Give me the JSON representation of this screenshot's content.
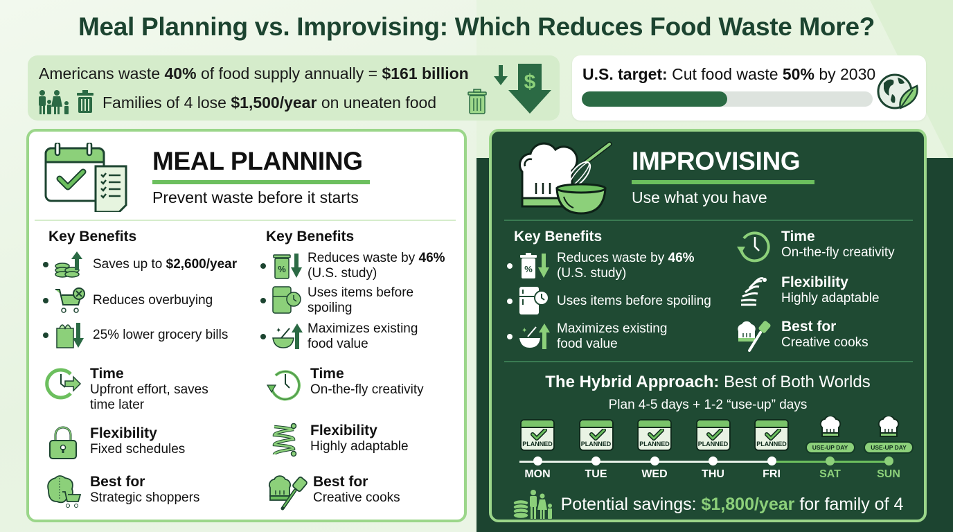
{
  "title": "Meal Planning vs. Improvising: Which Reduces Food Waste More?",
  "stats": {
    "line1_prefix": "Americans waste ",
    "line1_pct": "40%",
    "line1_mid": " of food supply annually = ",
    "line1_amount": "$161 billion",
    "line2_prefix": "Families of 4 lose ",
    "line2_amount": "$1,500/year",
    "line2_suffix": " on uneaten food",
    "icons": [
      "family-icon",
      "trash-can-icon",
      "down-arrow-icon",
      "dollar-down-arrow-icon"
    ]
  },
  "target": {
    "label": "U.S. target:",
    "text_a": " Cut food waste ",
    "pct": "50%",
    "text_b": " by 2030",
    "progress_percent": 50,
    "icon": "globe-leaf-icon"
  },
  "colors": {
    "dark_green": "#1c4430",
    "card_dark": "#1f4a33",
    "accent_green": "#6cbf5e",
    "light_green": "#8cd07a",
    "border_green": "#9bd68a",
    "progress_fill": "#2b6a44",
    "progress_track": "#dde3de"
  },
  "meal_planning": {
    "title": "MEAL PLANNING",
    "subtitle": "Prevent waste before it starts",
    "key_benefits_left": {
      "heading": "Key Benefits",
      "items": [
        {
          "icon": "coins-up-arrow-icon",
          "text": "Saves up to ",
          "bold": "$2,600/year"
        },
        {
          "icon": "cart-x-icon",
          "text": "Reduces overbuying",
          "bold": ""
        },
        {
          "icon": "grocery-bag-down-icon",
          "text": "25% lower grocery bills",
          "bold": ""
        }
      ]
    },
    "key_benefits_right": {
      "heading": "Key Benefits",
      "items": [
        {
          "icon": "bin-percent-down-icon",
          "line1": "Reduces waste by ",
          "bold": "46%",
          "line2": "(U.S. study)"
        },
        {
          "icon": "fridge-clock-icon",
          "line1": "Uses items before",
          "bold": "",
          "line2": "spoiling"
        },
        {
          "icon": "bowl-up-arrow-icon",
          "line1": "Maximizes existing",
          "bold": "",
          "line2": "food value"
        }
      ]
    },
    "attributes_left": [
      {
        "icon": "clock-forward-icon",
        "title": "Time",
        "desc": "Upfront effort, saves time later"
      },
      {
        "icon": "padlock-icon",
        "title": "Flexibility",
        "desc": "Fixed schedules"
      },
      {
        "icon": "brain-cart-icon",
        "title": "Best for",
        "desc": "Strategic shoppers"
      }
    ],
    "attributes_right": [
      {
        "icon": "clock-rewind-icon",
        "title": "Time",
        "desc": "On-the-fly creativity"
      },
      {
        "icon": "spring-icon",
        "title": "Flexibility",
        "desc": "Highly adaptable"
      },
      {
        "icon": "chef-hat-spatula-icon",
        "title": "Best for",
        "desc": "Creative cooks"
      }
    ]
  },
  "improvising": {
    "title": "IMPROVISING",
    "subtitle": "Use what you have",
    "key_benefits": {
      "heading": "Key Benefits",
      "items": [
        {
          "icon": "bin-percent-down-icon",
          "line1": "Reduces waste by ",
          "bold": "46%",
          "line2": "(U.S. study)"
        },
        {
          "icon": "fridge-clock-icon",
          "line1": "Uses items before spoiling",
          "bold": "",
          "line2": ""
        },
        {
          "icon": "bowl-up-arrow-icon",
          "line1": "Maximizes existing",
          "bold": "",
          "line2": "food value"
        }
      ]
    },
    "attributes": [
      {
        "icon": "clock-rewind-icon",
        "title": "Time",
        "desc": "On-the-fly creativity"
      },
      {
        "icon": "spring-icon",
        "title": "Flexibility",
        "desc": "Highly adaptable"
      },
      {
        "icon": "chef-hat-spatula-icon",
        "title": "Best for",
        "desc": "Creative cooks"
      }
    ],
    "hybrid": {
      "title_bold": "The Hybrid Approach:",
      "title_rest": " Best of Both Worlds",
      "subtitle": "Plan 4-5 days + 1-2 “use-up” days",
      "days": [
        {
          "day": "MON",
          "type": "planned",
          "badge": "PLANNED"
        },
        {
          "day": "TUE",
          "type": "planned",
          "badge": "PLANNED"
        },
        {
          "day": "WED",
          "type": "planned",
          "badge": "PLANNED"
        },
        {
          "day": "THU",
          "type": "planned",
          "badge": "PLANNED"
        },
        {
          "day": "FRI",
          "type": "planned",
          "badge": "PLANNED"
        },
        {
          "day": "SAT",
          "type": "use-up",
          "badge": "USE-UP DAY"
        },
        {
          "day": "SUN",
          "type": "use-up",
          "badge": "USE-UP DAY"
        }
      ]
    },
    "savings": {
      "prefix": "Potential savings: ",
      "amount": "$1,800/year",
      "suffix": " for family of 4",
      "icon": "coins-family-icon"
    }
  }
}
